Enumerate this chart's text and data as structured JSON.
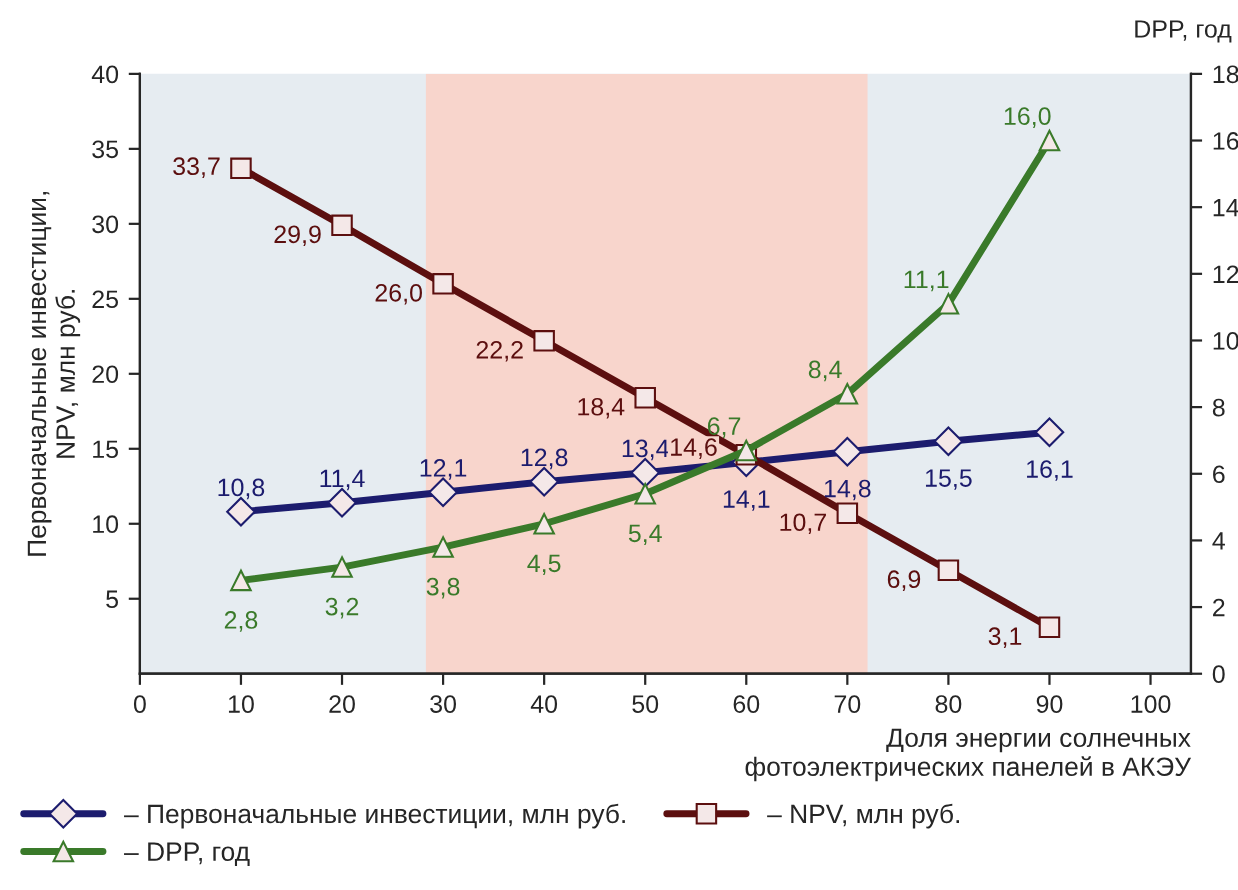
{
  "chart_data": {
    "type": "line",
    "x": [
      10,
      20,
      30,
      40,
      50,
      60,
      70,
      80,
      90
    ],
    "series": [
      {
        "name": "– Первоначальные инвестиции, млн руб.",
        "color": "#1c1c6e",
        "marker": "diamond",
        "values": [
          10.8,
          11.4,
          12.1,
          12.8,
          13.4,
          14.1,
          14.8,
          15.5,
          16.1
        ],
        "value_labels": [
          "10,8",
          "11,4",
          "12,1",
          "12,8",
          "13,4",
          "14,1",
          "14,8",
          "15,5",
          "16,1"
        ]
      },
      {
        "name": "– NPV, млн руб.",
        "color": "#5c0f0f",
        "marker": "square",
        "values": [
          33.7,
          29.9,
          26.0,
          22.2,
          18.4,
          14.6,
          10.7,
          6.9,
          3.1
        ],
        "value_labels": [
          "33,7",
          "29,9",
          "26,0",
          "22,2",
          "18,4",
          "14,6",
          "10,7",
          "6,9",
          "3,1"
        ]
      },
      {
        "name": "– DPP, год",
        "color": "#3a7a2a",
        "marker": "triangle",
        "axis": "y2",
        "values": [
          2.8,
          3.2,
          3.8,
          4.5,
          5.4,
          6.7,
          8.4,
          11.1,
          16.0
        ],
        "value_labels": [
          "2,8",
          "3,2",
          "3,8",
          "4,5",
          "5,4",
          "6,7",
          "8,4",
          "11,1",
          "16,0"
        ]
      }
    ],
    "xlabel": "Доля энергии солнечных\nфотоэлектрических панелей в АКЭУ",
    "ylabel": "Первоначальные инвестиции,\nNPV, млн руб.",
    "y2label": "DPP, год",
    "xlim": [
      0,
      104
    ],
    "xticks": [
      0,
      10,
      20,
      30,
      40,
      50,
      60,
      70,
      80,
      90,
      100
    ],
    "ylim": [
      0,
      40
    ],
    "yticks": [
      5,
      10,
      15,
      20,
      25,
      30,
      35,
      40
    ],
    "y2lim": [
      0,
      18
    ],
    "y2ticks": [
      0,
      2,
      4,
      6,
      8,
      10,
      12,
      14,
      16,
      18
    ],
    "bands": [
      {
        "axis": "x",
        "from": 28.3,
        "to": 72,
        "color": "#f8d5cc"
      }
    ],
    "legend": "bottom",
    "grid": false,
    "line_style": "solid"
  }
}
